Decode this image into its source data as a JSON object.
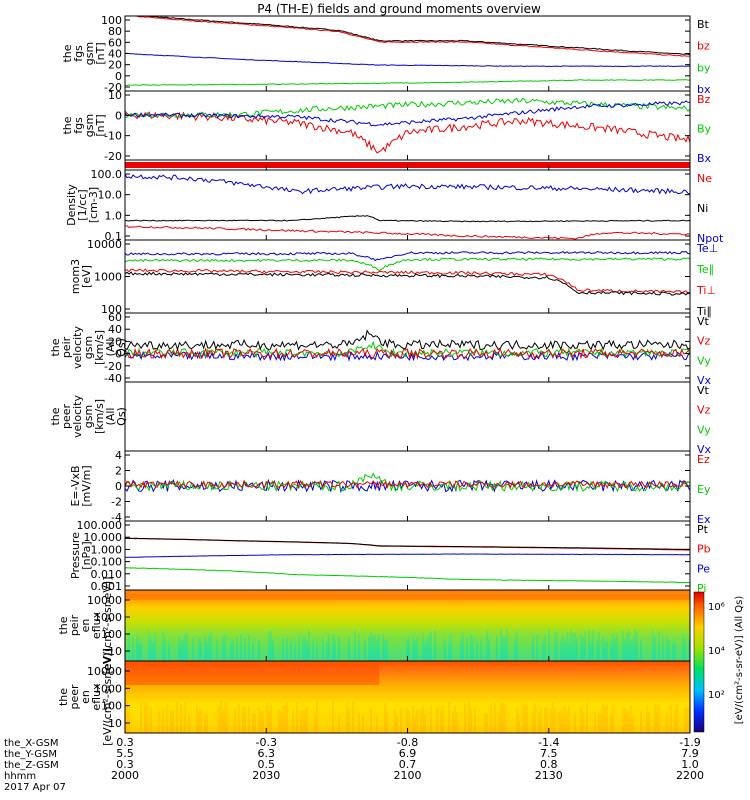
{
  "title": "P4 (TH-E) fields and ground moments overview",
  "colors": {
    "black": "#000000",
    "red": "#ee0000",
    "green": "#00cc00",
    "blue": "#0000dd"
  },
  "xaxis": {
    "ticks": [
      "2000",
      "2030",
      "2100",
      "2130",
      "2200"
    ],
    "rows": [
      {
        "label": "the_X-GSM",
        "values": [
          "0.3",
          "-0.3",
          "-0.8",
          "-1.4",
          "-1.9"
        ]
      },
      {
        "label": "the_Y-GSM",
        "values": [
          "5.5",
          "6.3",
          "6.9",
          "7.5",
          "7.9"
        ]
      },
      {
        "label": "the_Z-GSM",
        "values": [
          "0.3",
          "0.5",
          "0.7",
          "0.8",
          "1.0"
        ]
      },
      {
        "label": "hhmm",
        "values": [
          "2000",
          "2030",
          "2100",
          "2130",
          "2200"
        ]
      }
    ],
    "date": "2017 Apr 07"
  },
  "colorbar": {
    "label": "[eV/(cm²-s-sr-eV)] (All Qs)",
    "ticks": [
      "10⁶",
      "10⁴",
      "10²"
    ]
  },
  "chart_data": [
    {
      "type": "line",
      "ylabel": "the fgs gsm [nT]",
      "yticks": [
        "100",
        "80",
        "60",
        "40",
        "20",
        "0",
        "-20"
      ],
      "ylim": [
        -25,
        105
      ],
      "legend": [
        "Bt",
        "bz",
        "by",
        "bx"
      ],
      "series": [
        {
          "name": "Bt",
          "color": "black",
          "x": [
            0,
            0.1,
            0.25,
            0.38,
            0.45,
            0.6,
            0.8,
            1.0
          ],
          "values": [
            108,
            100,
            90,
            80,
            62,
            62,
            50,
            38
          ],
          "noise": 0.8
        },
        {
          "name": "bz",
          "color": "red",
          "x": [
            0,
            0.1,
            0.25,
            0.38,
            0.45,
            0.6,
            0.8,
            1.0
          ],
          "values": [
            106,
            98,
            88,
            78,
            60,
            60,
            47,
            35
          ],
          "noise": 0.8
        },
        {
          "name": "by",
          "color": "green",
          "x": [
            0,
            0.3,
            0.6,
            0.8,
            1.0
          ],
          "values": [
            -15,
            -13,
            -10,
            -6,
            -6
          ],
          "noise": 0.6
        },
        {
          "name": "bx",
          "color": "blue",
          "x": [
            0,
            0.2,
            0.45,
            0.7,
            1.0
          ],
          "values": [
            40,
            30,
            20,
            18,
            18
          ],
          "noise": 0.5
        }
      ]
    },
    {
      "type": "line",
      "ylabel": "the fgs gsm [nT]",
      "yticks": [
        "10",
        "0",
        "-10",
        "-20"
      ],
      "ylim": [
        -24,
        11
      ],
      "legend": [
        "Bz",
        "By",
        "Bx"
      ],
      "series": [
        {
          "name": "Bz",
          "color": "red",
          "x": [
            0,
            0.15,
            0.3,
            0.4,
            0.45,
            0.5,
            0.7,
            0.85,
            1.0
          ],
          "values": [
            -1,
            -2,
            -5,
            -10,
            -20,
            -10,
            -4,
            -8,
            -14
          ],
          "noise": 2
        },
        {
          "name": "By",
          "color": "green",
          "x": [
            0,
            0.2,
            0.35,
            0.5,
            0.7,
            0.85,
            1.0
          ],
          "values": [
            -1,
            -1,
            2,
            4,
            6,
            4,
            2
          ],
          "noise": 1.5
        },
        {
          "name": "Bx",
          "color": "blue",
          "x": [
            0,
            0.3,
            0.45,
            0.6,
            0.8,
            1.0
          ],
          "values": [
            -1,
            -2,
            -6,
            -3,
            3,
            5
          ],
          "noise": 1
        }
      ]
    },
    {
      "type": "line",
      "ylabel": "",
      "yticks": [],
      "ylim": [
        0,
        1
      ],
      "legend": [],
      "series": []
    },
    {
      "type": "line",
      "log": true,
      "ylabel": "Density [1/cc] [cm-3]",
      "yticks": [
        "100.0",
        "10.0",
        "1.0",
        "0.1"
      ],
      "ylim": [
        0.05,
        200
      ],
      "legend": [
        "Ne",
        "Ni",
        "Npot"
      ],
      "series": [
        {
          "name": "Ne",
          "color": "red",
          "x": [
            0,
            0.3,
            0.6,
            0.8,
            0.85,
            1.0
          ],
          "values": [
            0.25,
            0.15,
            0.08,
            0.06,
            0.12,
            0.1
          ],
          "noise": 0.1
        },
        {
          "name": "Ni",
          "color": "black",
          "x": [
            0,
            0.3,
            0.43,
            0.45,
            0.6,
            1.0
          ],
          "values": [
            0.5,
            0.5,
            0.9,
            0.5,
            0.45,
            0.5
          ],
          "noise": 0.05
        },
        {
          "name": "Npot",
          "color": "blue",
          "x": [
            0,
            0.1,
            0.2,
            0.3,
            0.5,
            0.7,
            1.0
          ],
          "values": [
            100,
            80,
            40,
            15,
            30,
            25,
            15
          ],
          "noise": 0.25
        }
      ]
    },
    {
      "type": "line",
      "log": true,
      "ylabel": "mom3 [eV]",
      "yticks": [
        "10000",
        "1000",
        "100"
      ],
      "ylim": [
        50,
        15000
      ],
      "legend": [
        "Te⊥",
        "Te∥",
        "Ti⊥",
        "Ti∥"
      ],
      "series": [
        {
          "name": "Te⊥",
          "color": "blue",
          "x": [
            0,
            0.4,
            0.45,
            0.5,
            1.0
          ],
          "values": [
            5000,
            5200,
            3000,
            5500,
            5600
          ],
          "noise": 0.08
        },
        {
          "name": "Te∥",
          "color": "green",
          "x": [
            0,
            0.4,
            0.45,
            0.5,
            1.0
          ],
          "values": [
            3000,
            3100,
            1500,
            3300,
            3400
          ],
          "noise": 0.08
        },
        {
          "name": "Ti⊥",
          "color": "red",
          "x": [
            0,
            0.3,
            0.6,
            0.75,
            0.8,
            1.0
          ],
          "values": [
            1400,
            1250,
            1150,
            1000,
            300,
            250
          ],
          "noise": 0.1
        },
        {
          "name": "Ti∥",
          "color": "black",
          "x": [
            0,
            0.3,
            0.6,
            0.75,
            0.8,
            1.0
          ],
          "values": [
            1100,
            1000,
            900,
            800,
            250,
            220
          ],
          "noise": 0.1
        }
      ]
    },
    {
      "type": "line",
      "ylabel": "the peir velocity gsm [km/s] (All Qs)",
      "yticks": [
        "60",
        "40",
        "20",
        "0",
        "-20",
        "-40"
      ],
      "ylim": [
        -42,
        62
      ],
      "legend": [
        "Vt",
        "Vz",
        "Vy",
        "Vx"
      ],
      "series": [
        {
          "name": "Vx",
          "color": "blue",
          "x": [
            0,
            1.0
          ],
          "values": [
            -3,
            -3
          ],
          "noise": 6
        },
        {
          "name": "Vy",
          "color": "green",
          "x": [
            0,
            0.4,
            0.43,
            0.47,
            1.0
          ],
          "values": [
            2,
            2,
            15,
            2,
            2
          ],
          "noise": 6
        },
        {
          "name": "Vz",
          "color": "red",
          "x": [
            0,
            1.0
          ],
          "values": [
            1,
            1
          ],
          "noise": 7
        },
        {
          "name": "Vt",
          "color": "black",
          "x": [
            0,
            0.4,
            0.43,
            0.47,
            1.0
          ],
          "values": [
            14,
            14,
            30,
            14,
            14
          ],
          "noise": 7
        }
      ]
    },
    {
      "type": "line",
      "ylabel": "the peer velocity gsm [km/s] (All Qs)",
      "yticks": [],
      "ylim": [
        0,
        1
      ],
      "legend": [
        "Vt",
        "Vz",
        "Vy",
        "Vx"
      ],
      "series": []
    },
    {
      "type": "line",
      "ylabel": "E=-VxB [mV/m]",
      "yticks": [
        "4",
        "2",
        "0",
        "-2",
        "-4"
      ],
      "ylim": [
        -4.2,
        4.2
      ],
      "legend": [
        "Ez",
        "Ey",
        "Ex"
      ],
      "series": [
        {
          "name": "Ex",
          "color": "blue",
          "x": [
            0,
            1.0
          ],
          "values": [
            0,
            0
          ],
          "noise": 0.7
        },
        {
          "name": "Ey",
          "color": "green",
          "x": [
            0,
            0.4,
            0.43,
            0.47,
            1.0
          ],
          "values": [
            0,
            0,
            1.5,
            0,
            0
          ],
          "noise": 0.6
        },
        {
          "name": "Ez",
          "color": "red",
          "x": [
            0,
            1.0
          ],
          "values": [
            0.2,
            0.2
          ],
          "noise": 0.4
        }
      ]
    },
    {
      "type": "line",
      "log": true,
      "ylabel": "Pressure [nPa]",
      "yticks": [
        "100.000",
        "10.000",
        "1.000",
        "0.100",
        "0.010",
        "0.001"
      ],
      "ylim": [
        0.0008,
        150
      ],
      "legend": [
        "Pt",
        "Pb",
        "Pe",
        "Pi"
      ],
      "series": [
        {
          "name": "Pb",
          "color": "red",
          "x": [
            0,
            0.2,
            0.4,
            0.45,
            0.7,
            1.0
          ],
          "values": [
            7,
            4.5,
            2.8,
            1.8,
            1.4,
            0.9
          ],
          "noise": 0.01
        },
        {
          "name": "Pt",
          "color": "black",
          "x": [
            0,
            0.2,
            0.4,
            0.45,
            0.7,
            1.0
          ],
          "values": [
            7.3,
            4.7,
            2.9,
            1.9,
            1.5,
            1.0
          ],
          "noise": 0.01
        },
        {
          "name": "Pe",
          "color": "blue",
          "x": [
            0,
            0.3,
            0.6,
            1.0
          ],
          "values": [
            0.25,
            0.4,
            0.45,
            0.4
          ],
          "noise": 0.02
        },
        {
          "name": "Pi",
          "color": "green",
          "x": [
            0,
            0.3,
            0.6,
            1.0
          ],
          "values": [
            0.04,
            0.012,
            0.005,
            0.003
          ],
          "noise": 0.03
        }
      ]
    },
    {
      "type": "heatmap",
      "ylabel": "the peir en eflux [eV/(cm²-s-sr-eV)]",
      "yticks": [
        "10000",
        "1000",
        "100",
        "10"
      ]
    },
    {
      "type": "heatmap",
      "ylabel": "the peer en eflux [eV/(cm²-s-sr-eV)]",
      "yticks": [
        "10000",
        "1000",
        "100",
        "10"
      ]
    }
  ]
}
